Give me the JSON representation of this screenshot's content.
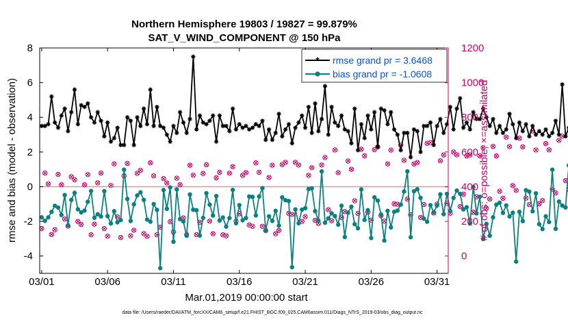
{
  "chart_data": {
    "type": "line",
    "title": "Northern Hemisphere 19803 / 19827 = 99.879%",
    "subtitle": "SAT_V_WIND_COMPONENT @ 150 hPa",
    "xlabel": "Mar.01,2019 00:00:00 start",
    "ylabel_left": "rmse and bias (model - observation)",
    "ylabel_right": "# of obs: o=possible; ×=assimilated",
    "footer": "data file: /Users/raeder/DAI/ATM_forcXX/CAM6_setup/f.e21.FHIST_BGC.f09_025.CAM6assim.011/Diags_NTrS_2019-03/obs_diag_output.nc",
    "x_ticks": [
      "03/01",
      "03/06",
      "03/11",
      "03/16",
      "03/21",
      "03/26",
      "03/31"
    ],
    "x_tick_days": [
      0,
      5,
      10,
      15,
      20,
      25,
      30
    ],
    "xlim": [
      -0.15,
      30.85
    ],
    "ylim_left": [
      -5,
      8
    ],
    "yticks_left": [
      "-4",
      "-2",
      "0",
      "2",
      "4",
      "6",
      "8"
    ],
    "ylim_right": [
      -100,
      1200
    ],
    "yticks_right": [
      "0",
      "200",
      "400",
      "600",
      "800",
      "1000",
      "1200"
    ],
    "colors": {
      "rmse": "#000000",
      "bias": "#0a8080",
      "obs": "#cc0066",
      "zero": "#c9a0a0",
      "axis_left": "#000000",
      "axis_right": "#cc0066"
    },
    "legend": [
      {
        "name": "rmse grand pr = 3.6468",
        "color": "#000000",
        "marker": "asterisk"
      },
      {
        "name": "bias grand pr = -1.0608",
        "color": "#0a8080",
        "marker": "circle"
      }
    ],
    "step_days": 0.25,
    "rmse": [
      3.5,
      3.5,
      3.6,
      5.2,
      3.7,
      3.4,
      4.1,
      4.5,
      3.2,
      4.3,
      5.6,
      3.6,
      4.7,
      4.6,
      4.8,
      4.0,
      3.7,
      4.3,
      3.8,
      2.9,
      3.7,
      2.6,
      2.8,
      3.4,
      2.4,
      2.4,
      4.0,
      3.8,
      2.4,
      4.0,
      3.5,
      4.5,
      3.6,
      5.6,
      3.5,
      4.6,
      3.5,
      3.4,
      3.0,
      2.6,
      3.5,
      3.1,
      4.3,
      3.7,
      3.1,
      3.9,
      7.5,
      3.3,
      4.1,
      3.7,
      3.6,
      3.8,
      4.1,
      2.6,
      4.1,
      3.5,
      3.5,
      3.2,
      4.5,
      3.3,
      3.6,
      3.4,
      3.5,
      3.3,
      3.4,
      3.6,
      3.5,
      3.8,
      2.7,
      3.3,
      2.7,
      3.1,
      4.2,
      2.9,
      3.3,
      3.6,
      2.5,
      3.4,
      3.7,
      4.1,
      3.4,
      4.6,
      3.1,
      4.8,
      3.2,
      3.9,
      5.8,
      3.0,
      4.6,
      3.7,
      3.5,
      4.1,
      3.3,
      3.2,
      2.5,
      4.5,
      2.1,
      3.6,
      2.8,
      4.1,
      3.3,
      4.3,
      2.3,
      4.5,
      4.4,
      3.6,
      4.3,
      3.3,
      3.0,
      2.1,
      3.1,
      3.1,
      1.7,
      3.3,
      3.2,
      2.0,
      3.5,
      3.5,
      3.7,
      2.4,
      3.5,
      3.9,
      3.1,
      3.6,
      4.6,
      3.3,
      4.5,
      5.1,
      3.4,
      3.7,
      3.3,
      4.3,
      3.9,
      3.9,
      4.5,
      4.0,
      3.5,
      3.9,
      3.1,
      3.5,
      3.1,
      3.3,
      4.2,
      3.6,
      2.8,
      3.7,
      3.2,
      3.6,
      2.9,
      3.5,
      3.0,
      3.2,
      3.0,
      3.3,
      2.9,
      3.1,
      3.8,
      3.0,
      5.9,
      2.9,
      3.4,
      3.0,
      3.1,
      2.5,
      3.5,
      2.1,
      3.3,
      2.3,
      3.3,
      2.5,
      3.9,
      2.9,
      3.9,
      3.5,
      3.8,
      3.9,
      3.6,
      3.8,
      3.4,
      3.5,
      3.0,
      3.3,
      2.7,
      3.0,
      2.6,
      2.6,
      3.1,
      2.7,
      3.5,
      3.5,
      3.7,
      3.1,
      3.8,
      2.9,
      3.5,
      3.6,
      2.9,
      3.0,
      3.5,
      2.8,
      4.0,
      3.4,
      4.1
    ]
  }
}
